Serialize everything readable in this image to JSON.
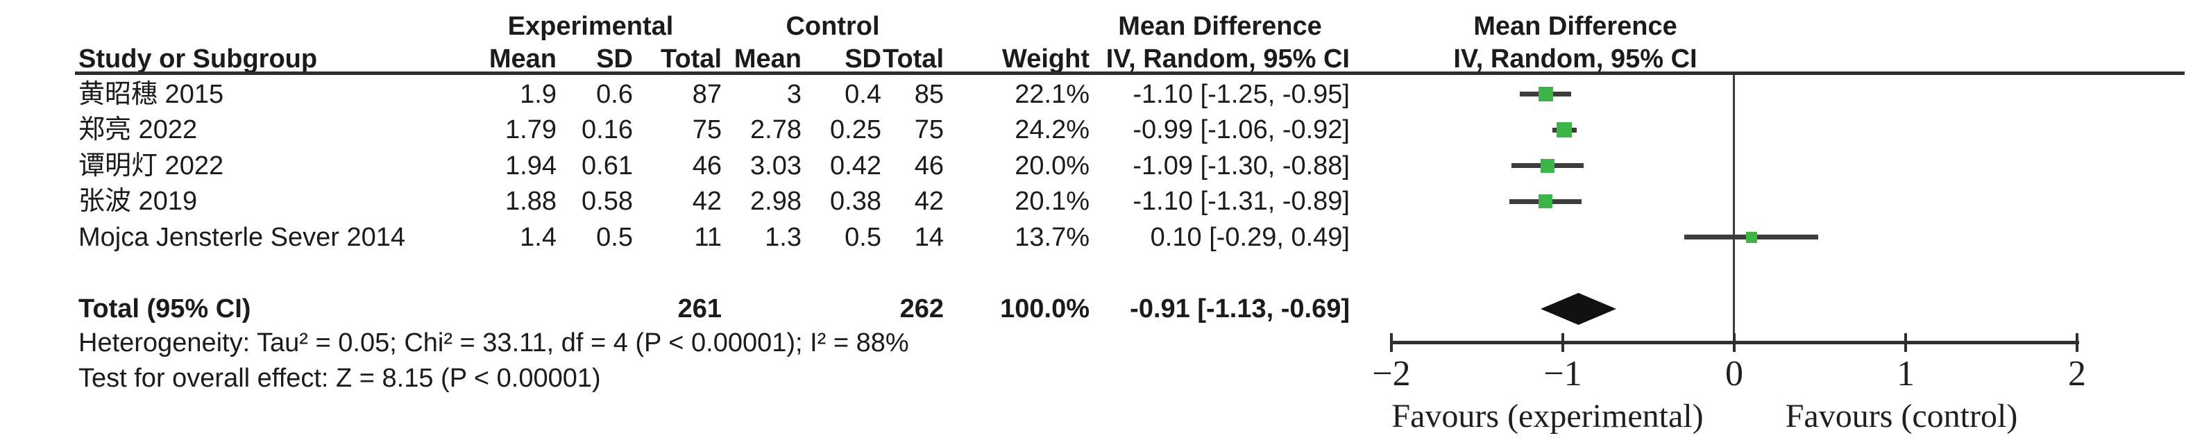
{
  "table": {
    "group_headers": {
      "experimental": "Experimental",
      "control": "Control",
      "mean_difference": "Mean Difference"
    },
    "col_headers": {
      "study": "Study or Subgroup",
      "mean": "Mean",
      "sd": "SD",
      "total": "Total",
      "weight": "Weight",
      "iv_random": "IV, Random, 95% CI"
    },
    "studies": [
      {
        "name": "黄昭穗 2015",
        "exp_mean": "1.9",
        "exp_sd": "0.6",
        "exp_total": "87",
        "ctrl_mean": "3",
        "ctrl_sd": "0.4",
        "ctrl_total": "85",
        "weight": "22.1%",
        "ci": "-1.10 [-1.25, -0.95]"
      },
      {
        "name": "郑亮 2022",
        "exp_mean": "1.79",
        "exp_sd": "0.16",
        "exp_total": "75",
        "ctrl_mean": "2.78",
        "ctrl_sd": "0.25",
        "ctrl_total": "75",
        "weight": "24.2%",
        "ci": "-0.99 [-1.06, -0.92]"
      },
      {
        "name": "谭明灯 2022",
        "exp_mean": "1.94",
        "exp_sd": "0.61",
        "exp_total": "46",
        "ctrl_mean": "3.03",
        "ctrl_sd": "0.42",
        "ctrl_total": "46",
        "weight": "20.0%",
        "ci": "-1.09 [-1.30, -0.88]"
      },
      {
        "name": "张波 2019",
        "exp_mean": "1.88",
        "exp_sd": "0.58",
        "exp_total": "42",
        "ctrl_mean": "2.98",
        "ctrl_sd": "0.38",
        "ctrl_total": "42",
        "weight": "20.1%",
        "ci": "-1.10 [-1.31, -0.89]"
      },
      {
        "name": "Mojca Jensterle Sever 2014",
        "exp_mean": "1.4",
        "exp_sd": "0.5",
        "exp_total": "11",
        "ctrl_mean": "1.3",
        "ctrl_sd": "0.5",
        "ctrl_total": "14",
        "weight": "13.7%",
        "ci": "0.10 [-0.29, 0.49]"
      }
    ],
    "total": {
      "label": "Total (95% CI)",
      "exp_total": "261",
      "ctrl_total": "262",
      "weight": "100.0%",
      "ci": "-0.91 [-1.13, -0.69]"
    },
    "heterogeneity": "Heterogeneity: Tau² = 0.05; Chi² = 33.11, df = 4 (P < 0.00001); I² = 88%",
    "overall_effect": "Test for overall effect: Z = 8.15 (P < 0.00001)"
  },
  "plot": {
    "header_line1": "Mean Difference",
    "header_line2": "IV, Random, 95% CI",
    "tick_labels": [
      "−2",
      "−1",
      "0",
      "1",
      "2"
    ],
    "favours_left": "Favours (experimental)",
    "favours_right": "Favours (control)",
    "square_color": "#3cb446",
    "diamond_color": "#111111"
  },
  "chart_data": {
    "type": "scatter",
    "subtype": "forest-plot",
    "title": "Mean Difference, IV, Random, 95% CI",
    "x_axis": {
      "min": -2,
      "max": 2,
      "ticks": [
        -2,
        -1,
        0,
        1,
        2
      ],
      "zero_line": 0
    },
    "points": [
      {
        "study": "黄昭穗 2015",
        "md": -1.1,
        "ci_low": -1.25,
        "ci_high": -0.95,
        "weight_pct": 22.1
      },
      {
        "study": "郑亮 2022",
        "md": -0.99,
        "ci_low": -1.06,
        "ci_high": -0.92,
        "weight_pct": 24.2
      },
      {
        "study": "谭明灯 2022",
        "md": -1.09,
        "ci_low": -1.3,
        "ci_high": -0.88,
        "weight_pct": 20.0
      },
      {
        "study": "张波 2019",
        "md": -1.1,
        "ci_low": -1.31,
        "ci_high": -0.89,
        "weight_pct": 20.1
      },
      {
        "study": "Mojca Jensterle Sever 2014",
        "md": 0.1,
        "ci_low": -0.29,
        "ci_high": 0.49,
        "weight_pct": 13.7
      }
    ],
    "pooled": {
      "label": "Total (95% CI)",
      "md": -0.91,
      "ci_low": -1.13,
      "ci_high": -0.69,
      "weight_pct": 100.0
    },
    "annotations": {
      "favours_left": "Favours (experimental)",
      "favours_right": "Favours (control)",
      "heterogeneity": "Heterogeneity: Tau² = 0.05; Chi² = 33.11, df = 4 (P < 0.00001); I² = 88%",
      "overall_effect": "Test for overall effect: Z = 8.15 (P < 0.00001)"
    }
  }
}
